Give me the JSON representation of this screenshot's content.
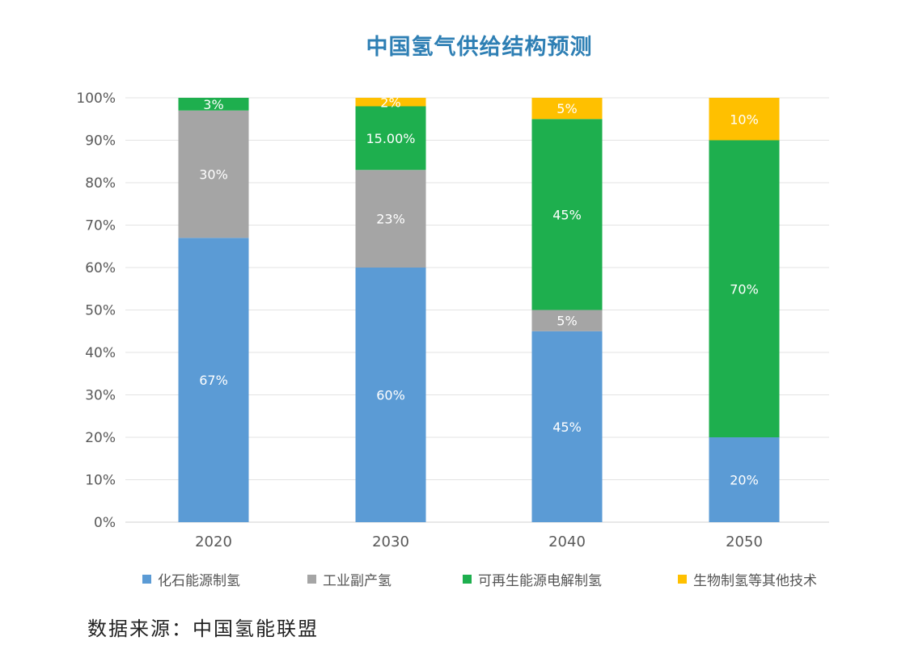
{
  "chart_data": {
    "type": "bar",
    "stacked": true,
    "title": "中国氢气供给结构预测",
    "categories": [
      "2020",
      "2030",
      "2040",
      "2050"
    ],
    "y_ticks": [
      "0%",
      "10%",
      "20%",
      "30%",
      "40%",
      "50%",
      "60%",
      "70%",
      "80%",
      "90%",
      "100%"
    ],
    "ylim": [
      0,
      100
    ],
    "grid": true,
    "legend_position": "bottom",
    "series": [
      {
        "name": "化石能源制氢",
        "color": "#5b9bd5",
        "values": [
          67,
          60,
          45,
          20
        ],
        "labels": [
          "67%",
          "60%",
          "45%",
          "20%"
        ]
      },
      {
        "name": "工业副产氢",
        "color": "#a5a5a5",
        "values": [
          30,
          23,
          5,
          0
        ],
        "labels": [
          "30%",
          "23%",
          "5%",
          ""
        ]
      },
      {
        "name": "可再生能源电解制氢",
        "color": "#1eaf4e",
        "values": [
          3,
          15,
          45,
          70
        ],
        "labels": [
          "3%",
          "15.00%",
          "45%",
          "70%"
        ]
      },
      {
        "name": "生物制氢等其他技术",
        "color": "#ffc000",
        "values": [
          0,
          2,
          5,
          10
        ],
        "labels": [
          "",
          "2%",
          "5%",
          "10%"
        ]
      }
    ]
  },
  "title_color": "#2e7fb4",
  "source_text": "数据来源：中国氢能联盟"
}
